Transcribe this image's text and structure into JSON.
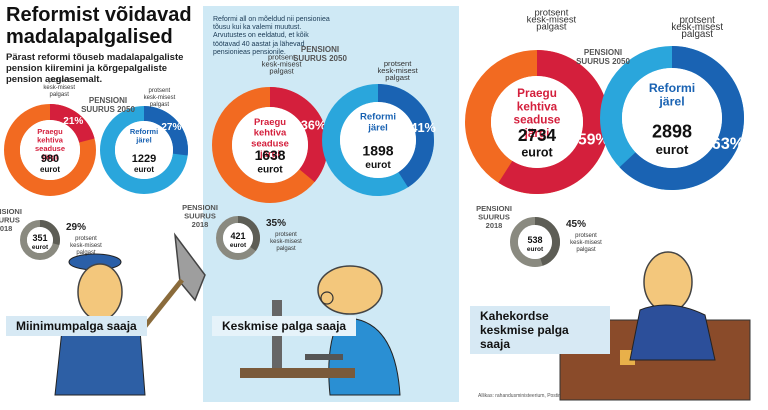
{
  "title": "Reformist võidavad madalapalgalised",
  "subtitle": "Pärast reformi tõuseb madalapalgaliste pension kiiremini ja kõrgepalgaliste pension aeglasemalt.",
  "note": "Reformi all on mõeldud nii pensioniea tõusu kui ka valemi muutust. Arvutustes on eeldatud, et kõik töötavad 40 aastat ja lähevad pensionieas pensionile.",
  "source": "Allikas: rahandusministeerium, Postimees",
  "labels": {
    "size_2050": "PENSIONI SUURUS 2050",
    "size_2018": "PENSIONI SUURUS 2018",
    "current": "Praegu kehtiva seaduse järgi",
    "reform": "Reformi järel",
    "euro": "eurot",
    "pct_avg": "protsent kesk-misest palgast"
  },
  "colors": {
    "current": "#d41f3c",
    "reform": "#1a63b3",
    "orange": "#f26a21",
    "lightblue": "#2aa6dc",
    "gray2018": "#8a8a80",
    "ring2018": "#5d5d55"
  },
  "chart_data": [
    {
      "type": "pie",
      "group": "Miinimum-palga saaja",
      "label": "Miinimumpalga saaja",
      "pension_2050_current": 980,
      "pension_2050_current_pct": 21,
      "pension_2050_reform": 1229,
      "pension_2050_reform_pct": 27,
      "pension_2018": 351,
      "pension_2018_pct": 29
    },
    {
      "type": "pie",
      "group": "Keskmise palga saaja",
      "label": "Keskmise palga saaja",
      "pension_2050_current": 1638,
      "pension_2050_current_pct": 36,
      "pension_2050_reform": 1898,
      "pension_2050_reform_pct": 41,
      "pension_2018": 421,
      "pension_2018_pct": 35
    },
    {
      "type": "pie",
      "group": "Kahekordse keskmise palga saaja",
      "label": "Kahekordse keskmise palga saaja",
      "pension_2050_current": 2734,
      "pension_2050_current_pct": 59,
      "pension_2050_reform": 2898,
      "pension_2050_reform_pct": 63,
      "pension_2018": 538,
      "pension_2018_pct": 45
    }
  ]
}
